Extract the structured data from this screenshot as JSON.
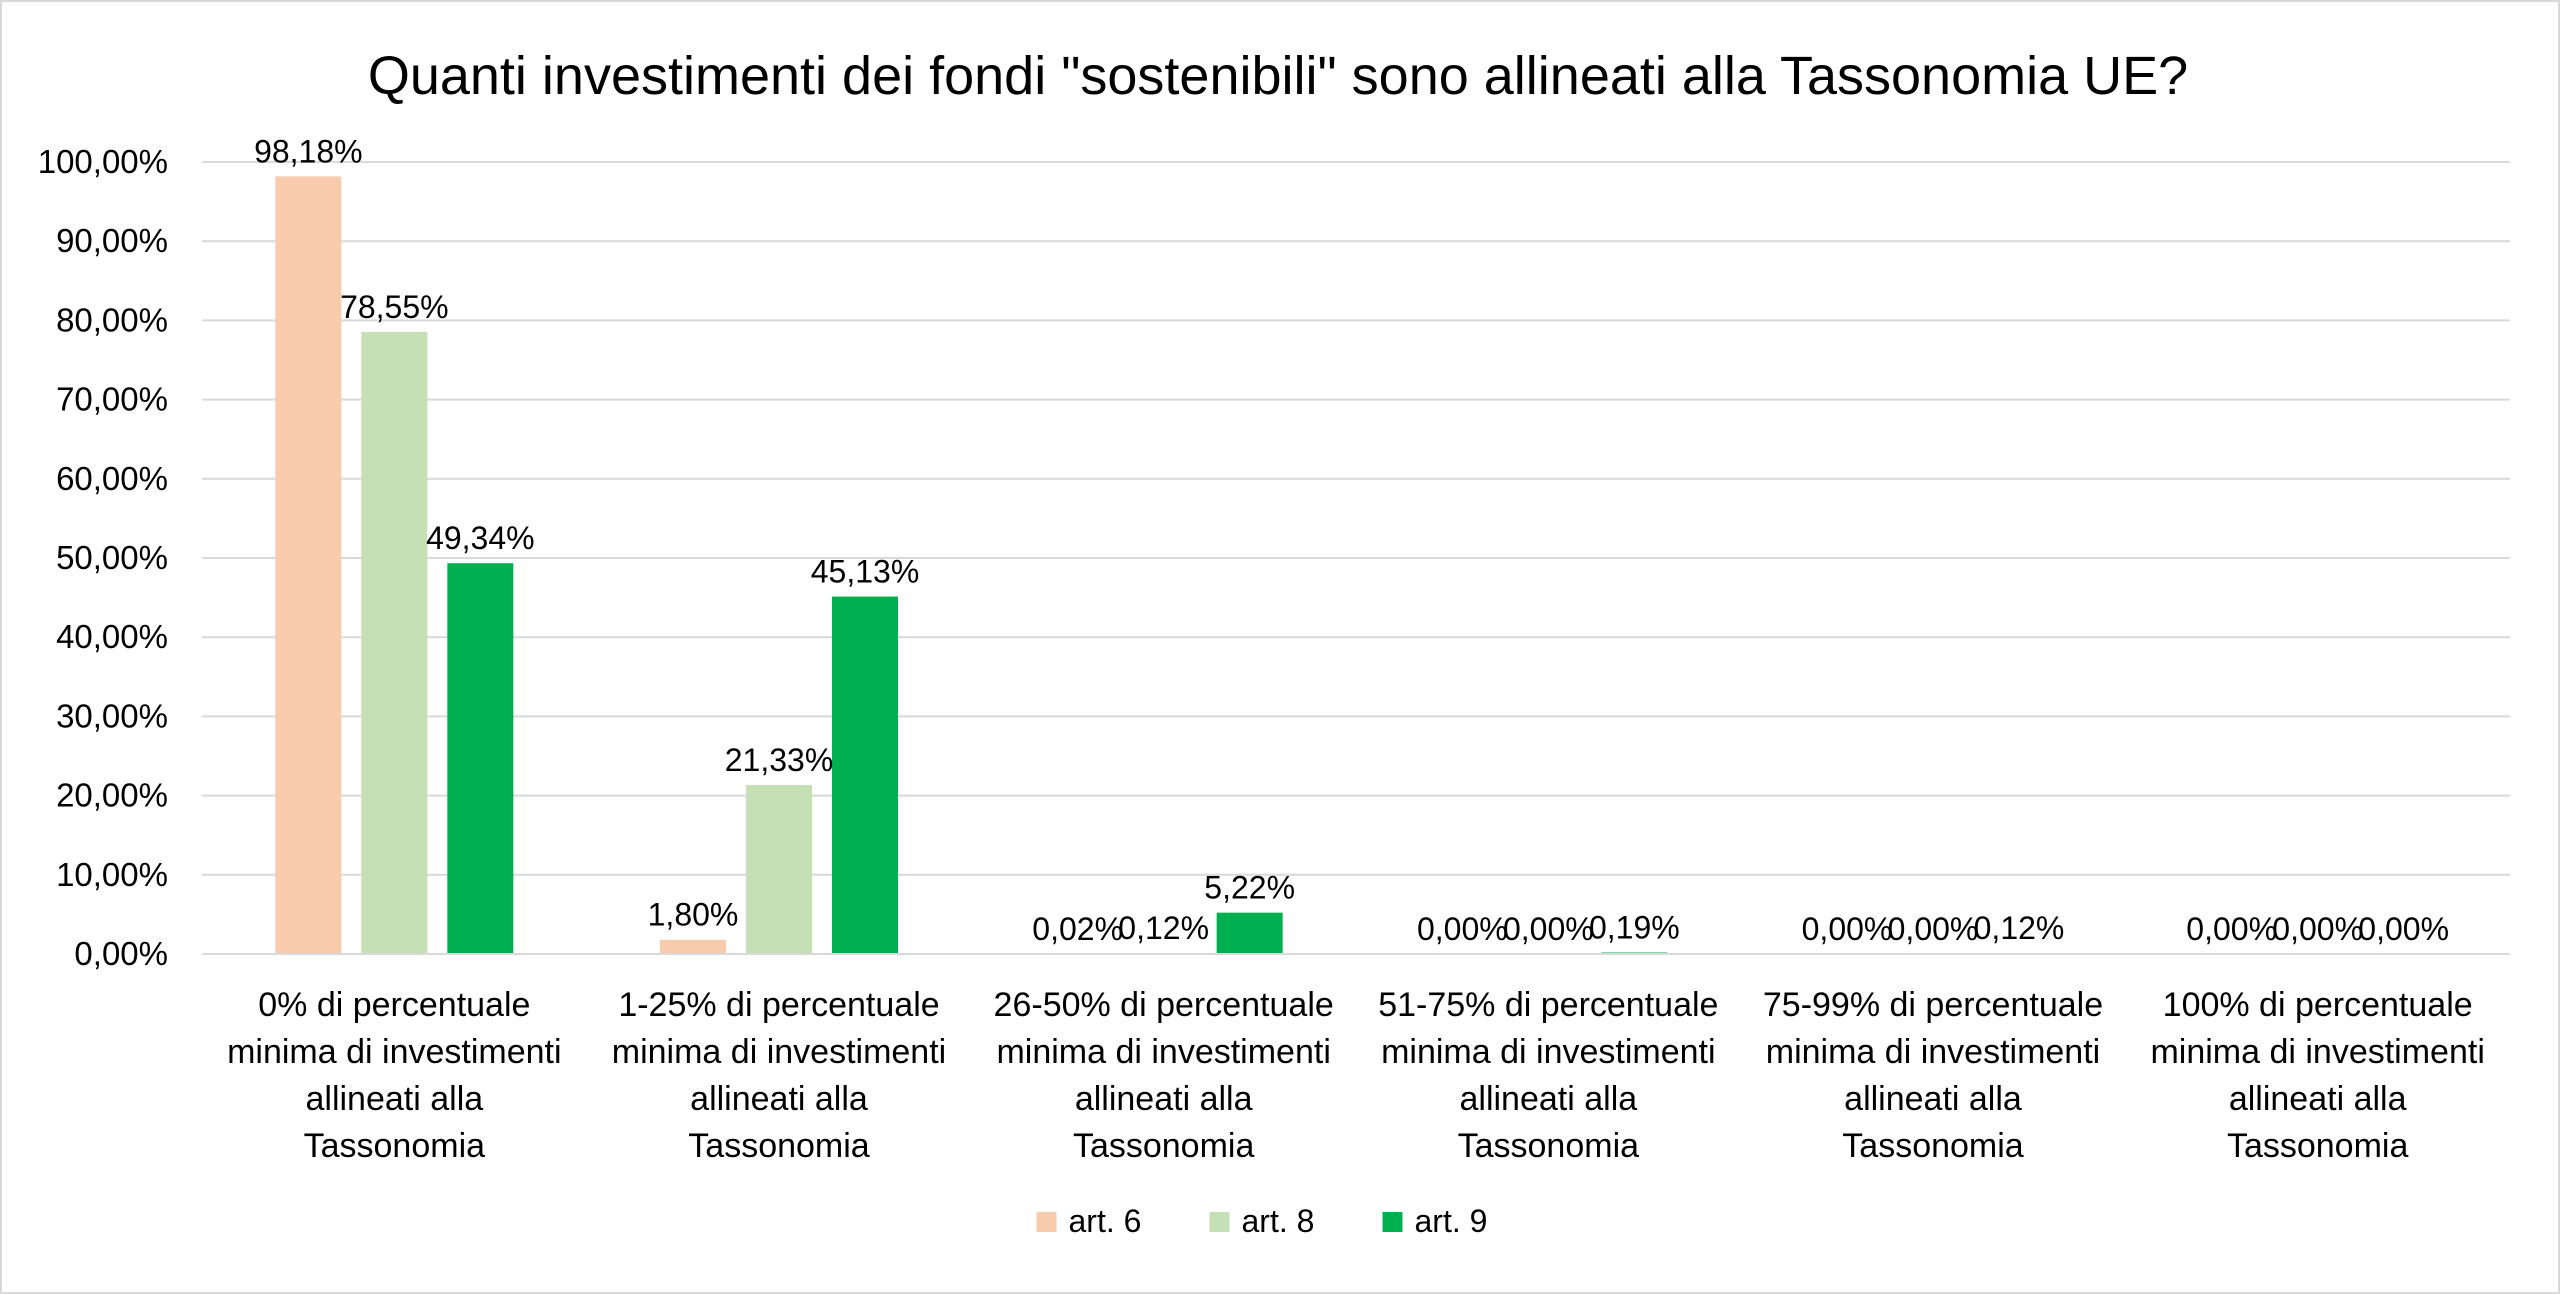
{
  "chart_data": {
    "type": "bar",
    "title": "Quanti investimenti dei fondi \"sostenibili\" sono allineati alla Tassonomia UE?",
    "xlabel": "",
    "ylabel": "",
    "ylim": [
      0,
      100
    ],
    "yticks": [
      "0,00%",
      "10,00%",
      "20,00%",
      "30,00%",
      "40,00%",
      "50,00%",
      "60,00%",
      "70,00%",
      "80,00%",
      "90,00%",
      "100,00%"
    ],
    "grid": true,
    "legend_position": "bottom",
    "categories": [
      [
        "0% di percentuale",
        "minima di investimenti",
        "allineati alla",
        "Tassonomia"
      ],
      [
        "1-25% di percentuale",
        "minima di investimenti",
        "allineati alla",
        "Tassonomia"
      ],
      [
        "26-50% di percentuale",
        "minima di investimenti",
        "allineati alla",
        "Tassonomia"
      ],
      [
        "51-75% di percentuale",
        "minima di investimenti",
        "allineati alla",
        "Tassonomia"
      ],
      [
        "75-99% di percentuale",
        "minima di investimenti",
        "allineati alla",
        "Tassonomia"
      ],
      [
        "100% di percentuale",
        "minima di investimenti",
        "allineati alla",
        "Tassonomia"
      ]
    ],
    "series": [
      {
        "name": "art. 6",
        "color": "#F8CBAD",
        "values": [
          98.18,
          1.8,
          0.02,
          0.0,
          0.0,
          0.0
        ],
        "labels": [
          "98,18%",
          "1,80%",
          "0,02%",
          "0,00%",
          "0,00%",
          "0,00%"
        ]
      },
      {
        "name": "art. 8",
        "color": "#C5E0B4",
        "values": [
          78.55,
          21.33,
          0.12,
          0.0,
          0.0,
          0.0
        ],
        "labels": [
          "78,55%",
          "21,33%",
          "0,12%",
          "0,00%",
          "0,00%",
          "0,00%"
        ]
      },
      {
        "name": "art. 9",
        "color": "#00B050",
        "values": [
          49.34,
          45.13,
          5.22,
          0.19,
          0.12,
          0.0
        ],
        "labels": [
          "49,34%",
          "45,13%",
          "5,22%",
          "0,19%",
          "0,12%",
          "0,00%"
        ]
      }
    ]
  }
}
